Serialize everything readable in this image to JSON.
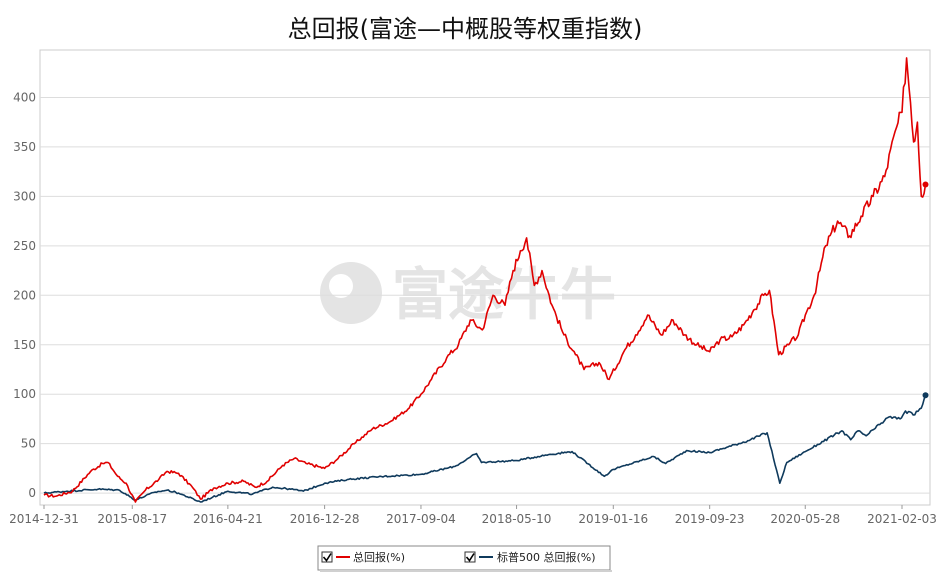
{
  "chart_data": {
    "type": "line",
    "title": "总回报(富途—中概股等权重指数)",
    "watermark": "富途牛牛",
    "x_ticks": [
      "2014-12-31",
      "2015-08-17",
      "2016-04-21",
      "2016-12-28",
      "2017-09-04",
      "2018-05-10",
      "2019-01-16",
      "2019-09-23",
      "2020-05-28",
      "2021-02-03"
    ],
    "y_ticks": [
      0,
      50,
      100,
      150,
      200,
      250,
      300,
      350,
      400
    ],
    "ylim": [
      -12,
      448
    ],
    "grid": true,
    "legend_position": "bottom-center",
    "series": [
      {
        "name": "总回报(%)",
        "color": "#e00000",
        "points": [
          [
            "2014-12-31",
            -2
          ],
          [
            "2015-02-01",
            -3
          ],
          [
            "2015-03-15",
            2
          ],
          [
            "2015-05-01",
            22
          ],
          [
            "2015-06-01",
            30
          ],
          [
            "2015-06-15",
            31
          ],
          [
            "2015-07-10",
            17
          ],
          [
            "2015-08-01",
            10
          ],
          [
            "2015-08-25",
            -9
          ],
          [
            "2015-09-20",
            3
          ],
          [
            "2015-10-25",
            14
          ],
          [
            "2015-11-15",
            22
          ],
          [
            "2015-12-15",
            20
          ],
          [
            "2016-01-20",
            6
          ],
          [
            "2016-02-10",
            -6
          ],
          [
            "2016-03-15",
            5
          ],
          [
            "2016-04-21",
            10
          ],
          [
            "2016-06-01",
            12
          ],
          [
            "2016-07-01",
            6
          ],
          [
            "2016-08-01",
            12
          ],
          [
            "2016-09-10",
            28
          ],
          [
            "2016-10-10",
            35
          ],
          [
            "2016-11-10",
            30
          ],
          [
            "2016-12-10",
            27
          ],
          [
            "2016-12-28",
            25
          ],
          [
            "2017-02-01",
            35
          ],
          [
            "2017-03-15",
            50
          ],
          [
            "2017-05-01",
            65
          ],
          [
            "2017-06-15",
            72
          ],
          [
            "2017-08-01",
            85
          ],
          [
            "2017-09-04",
            100
          ],
          [
            "2017-10-01",
            115
          ],
          [
            "2017-11-10",
            137
          ],
          [
            "2017-12-10",
            150
          ],
          [
            "2018-01-10",
            175
          ],
          [
            "2018-02-10",
            165
          ],
          [
            "2018-03-10",
            200
          ],
          [
            "2018-04-10",
            190
          ],
          [
            "2018-05-01",
            225
          ],
          [
            "2018-05-20",
            245
          ],
          [
            "2018-06-05",
            258
          ],
          [
            "2018-06-25",
            210
          ],
          [
            "2018-07-15",
            225
          ],
          [
            "2018-08-10",
            190
          ],
          [
            "2018-09-10",
            160
          ],
          [
            "2018-10-10",
            140
          ],
          [
            "2018-11-01",
            125
          ],
          [
            "2018-12-10",
            132
          ],
          [
            "2019-01-05",
            115
          ],
          [
            "2019-02-15",
            145
          ],
          [
            "2019-03-15",
            160
          ],
          [
            "2019-04-15",
            180
          ],
          [
            "2019-05-20",
            160
          ],
          [
            "2019-06-20",
            175
          ],
          [
            "2019-07-20",
            160
          ],
          [
            "2019-08-20",
            150
          ],
          [
            "2019-09-23",
            143
          ],
          [
            "2019-10-20",
            155
          ],
          [
            "2019-11-20",
            158
          ],
          [
            "2019-12-20",
            170
          ],
          [
            "2020-01-15",
            185
          ],
          [
            "2020-02-10",
            200
          ],
          [
            "2020-02-25",
            205
          ],
          [
            "2020-03-20",
            140
          ],
          [
            "2020-04-15",
            150
          ],
          [
            "2020-05-10",
            160
          ],
          [
            "2020-05-28",
            180
          ],
          [
            "2020-06-20",
            200
          ],
          [
            "2020-07-20",
            250
          ],
          [
            "2020-08-20",
            275
          ],
          [
            "2020-09-20",
            260
          ],
          [
            "2020-10-20",
            280
          ],
          [
            "2020-11-20",
            300
          ],
          [
            "2020-12-20",
            320
          ],
          [
            "2021-01-20",
            370
          ],
          [
            "2021-02-03",
            385
          ],
          [
            "2021-02-15",
            440
          ],
          [
            "2021-02-25",
            395
          ],
          [
            "2021-03-05",
            355
          ],
          [
            "2021-03-15",
            375
          ],
          [
            "2021-03-25",
            300
          ],
          [
            "2021-04-05",
            312
          ]
        ]
      },
      {
        "name": "标普500 总回报(%)",
        "color": "#0f3a5c",
        "points": [
          [
            "2014-12-31",
            0
          ],
          [
            "2015-03-01",
            2
          ],
          [
            "2015-05-20",
            4
          ],
          [
            "2015-07-15",
            3
          ],
          [
            "2015-08-25",
            -7
          ],
          [
            "2015-10-15",
            1
          ],
          [
            "2015-11-15",
            3
          ],
          [
            "2015-12-15",
            0
          ],
          [
            "2016-02-10",
            -9
          ],
          [
            "2016-04-21",
            2
          ],
          [
            "2016-06-24",
            -1
          ],
          [
            "2016-08-15",
            6
          ],
          [
            "2016-10-01",
            4
          ],
          [
            "2016-11-03",
            2
          ],
          [
            "2016-12-28",
            10
          ],
          [
            "2017-03-01",
            14
          ],
          [
            "2017-06-01",
            17
          ],
          [
            "2017-09-04",
            19
          ],
          [
            "2017-12-01",
            27
          ],
          [
            "2018-01-26",
            40
          ],
          [
            "2018-02-08",
            31
          ],
          [
            "2018-05-10",
            33
          ],
          [
            "2018-08-01",
            39
          ],
          [
            "2018-10-01",
            42
          ],
          [
            "2018-12-24",
            17
          ],
          [
            "2019-01-16",
            24
          ],
          [
            "2019-04-30",
            37
          ],
          [
            "2019-06-01",
            30
          ],
          [
            "2019-07-25",
            43
          ],
          [
            "2019-09-23",
            41
          ],
          [
            "2019-12-31",
            53
          ],
          [
            "2020-02-19",
            61
          ],
          [
            "2020-03-23",
            10
          ],
          [
            "2020-04-10",
            31
          ],
          [
            "2020-05-28",
            42
          ],
          [
            "2020-08-31",
            63
          ],
          [
            "2020-09-23",
            54
          ],
          [
            "2020-10-12",
            63
          ],
          [
            "2020-11-02",
            58
          ],
          [
            "2020-12-31",
            77
          ],
          [
            "2021-01-29",
            75
          ],
          [
            "2021-02-12",
            83
          ],
          [
            "2021-03-04",
            79
          ],
          [
            "2021-03-25",
            86
          ],
          [
            "2021-04-05",
            99
          ]
        ]
      }
    ]
  }
}
